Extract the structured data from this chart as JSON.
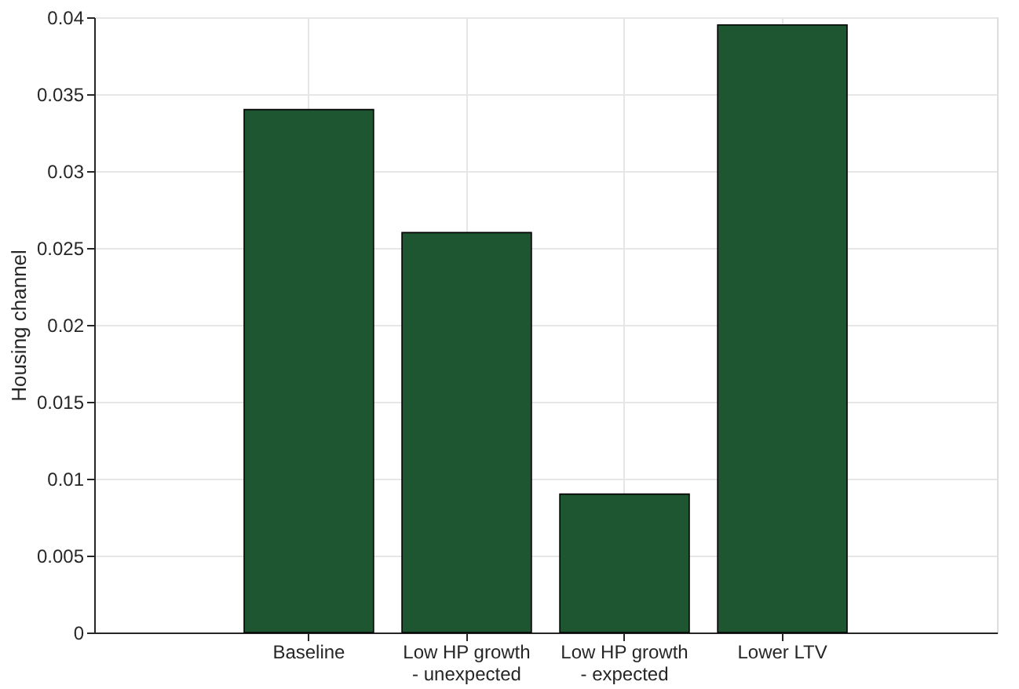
{
  "chart_data": {
    "type": "bar",
    "ylabel": "Housing channel",
    "categories": [
      "Baseline",
      "Low HP growth\n- unexpected",
      "Low HP growth\n- expected",
      "Lower LTV"
    ],
    "values": [
      0.034,
      0.026,
      0.009,
      0.0395
    ],
    "color": "#1e5631",
    "ylim": [
      0,
      0.04
    ],
    "yticks": [
      0,
      0.005,
      0.01,
      0.015,
      0.02,
      0.025,
      0.03,
      0.035,
      0.04
    ],
    "grid": true
  }
}
